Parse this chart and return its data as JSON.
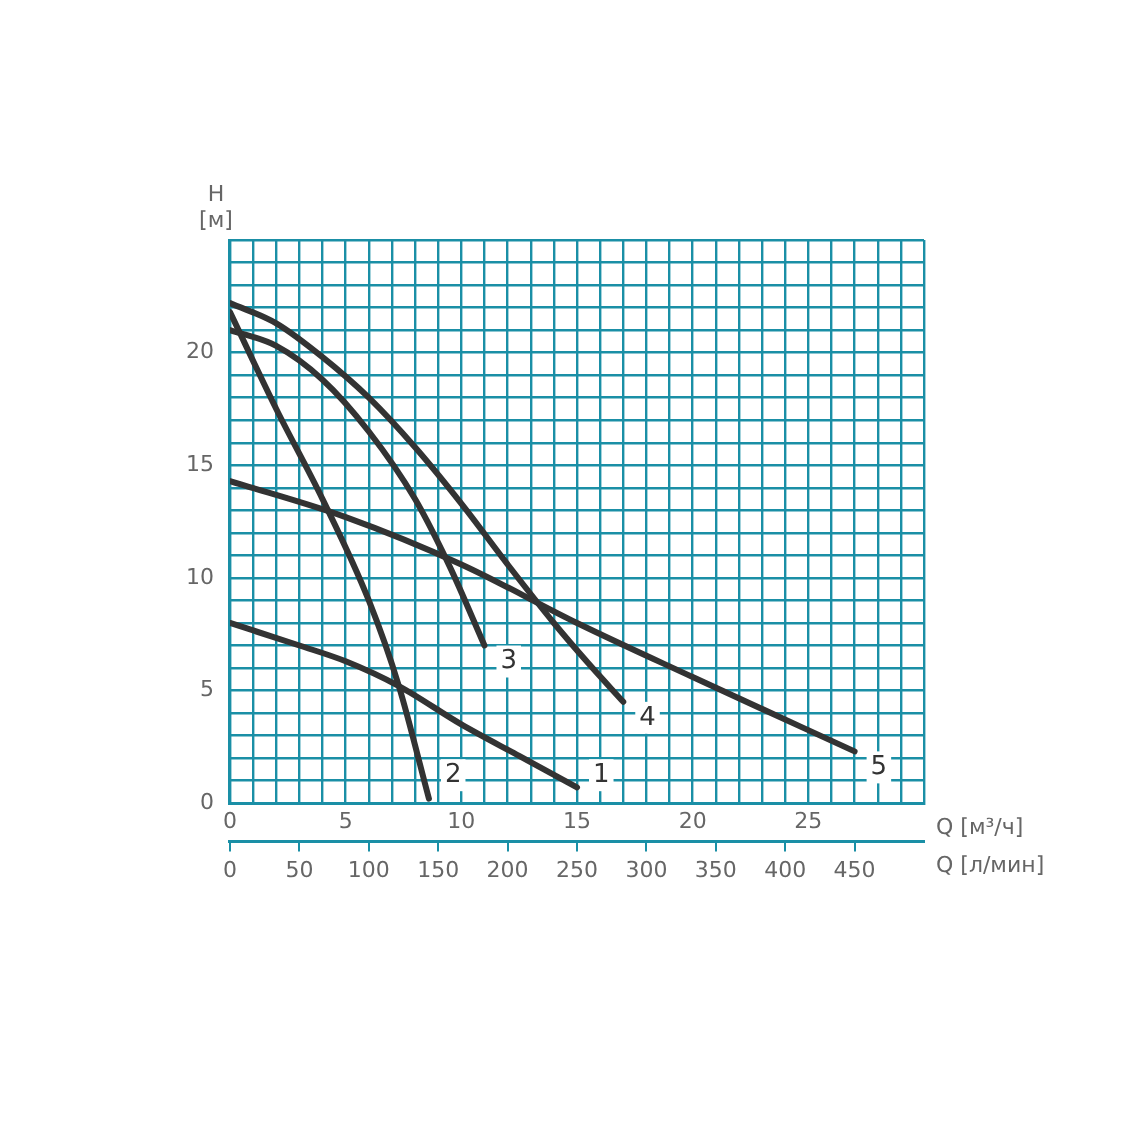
{
  "chart_data": {
    "type": "line",
    "xlabel": "Q [м³/ч]",
    "ylabel": "H [м]",
    "x2label": "Q [л/мин]",
    "xlim": [
      0,
      30
    ],
    "ylim": [
      0,
      25
    ],
    "x2lim": [
      0,
      500
    ],
    "xticks": [
      0,
      {
        "value": 1,
        "label": null
      },
      {
        "value": 2,
        "label": null
      },
      {
        "value": 3,
        "label": null
      },
      {
        "value": 4,
        "label": null
      },
      5,
      {
        "value": 6,
        "label": null
      },
      {
        "value": 7,
        "label": null
      },
      {
        "value": 8,
        "label": null
      },
      {
        "value": 9,
        "label": null
      },
      10,
      {
        "value": 11,
        "label": null
      },
      {
        "value": 12,
        "label": null
      },
      {
        "value": 13,
        "label": null
      },
      {
        "value": 14,
        "label": null
      },
      15,
      {
        "value": 16,
        "label": null
      },
      {
        "value": 17,
        "label": null
      },
      {
        "value": 18,
        "label": null
      },
      {
        "value": 19,
        "label": null
      },
      20,
      {
        "value": 21,
        "label": null
      },
      {
        "value": 22,
        "label": null
      },
      {
        "value": 23,
        "label": null
      },
      {
        "value": 24,
        "label": null
      },
      25,
      {
        "value": 26,
        "label": null
      },
      {
        "value": 27,
        "label": null
      },
      {
        "value": 28,
        "label": null
      },
      {
        "value": 29,
        "label": null
      },
      {
        "value": 30,
        "label": null
      }
    ],
    "yticks": [
      0,
      {
        "value": 1,
        "label": null
      },
      {
        "value": 2,
        "label": null
      },
      {
        "value": 3,
        "label": null
      },
      {
        "value": 4,
        "label": null
      },
      5,
      {
        "value": 6,
        "label": null
      },
      {
        "value": 7,
        "label": null
      },
      {
        "value": 8,
        "label": null
      },
      {
        "value": 9,
        "label": null
      },
      10,
      {
        "value": 11,
        "label": null
      },
      {
        "value": 12,
        "label": null
      },
      {
        "value": 13,
        "label": null
      },
      {
        "value": 14,
        "label": null
      },
      15,
      {
        "value": 16,
        "label": null
      },
      {
        "value": 17,
        "label": null
      },
      {
        "value": 18,
        "label": null
      },
      {
        "value": 19,
        "label": null
      },
      20,
      {
        "value": 21,
        "label": null
      },
      {
        "value": 22,
        "label": null
      },
      {
        "value": 23,
        "label": null
      },
      {
        "value": 24,
        "label": null
      },
      {
        "value": 25,
        "label": null
      }
    ],
    "x2ticks": [
      0,
      50,
      100,
      150,
      200,
      250,
      300,
      350,
      400,
      450
    ],
    "grid": true,
    "legend": false,
    "marker": "none",
    "line_style": "solid",
    "series": [
      {
        "name": "1",
        "color": "#333333",
        "x": [
          0,
          3,
          5,
          7.3,
          10,
          12.5,
          15
        ],
        "values": [
          8,
          7,
          6.3,
          5.2,
          3.5,
          2.1,
          0.7
        ]
      },
      {
        "name": "2",
        "color": "#333333",
        "x": [
          0,
          2,
          4,
          6,
          7.3,
          8.6
        ],
        "values": [
          21.8,
          17.5,
          13.5,
          9,
          5.2,
          0.2
        ]
      },
      {
        "name": "3",
        "color": "#333333",
        "x": [
          0,
          2,
          4,
          6,
          8,
          9.5,
          11
        ],
        "values": [
          21,
          20.3,
          18.8,
          16.5,
          13.5,
          10.5,
          7
        ]
      },
      {
        "name": "4",
        "color": "#333333",
        "x": [
          0,
          2,
          4,
          6,
          8,
          10,
          12,
          14,
          15.5,
          17
        ],
        "values": [
          22.2,
          21.3,
          19.8,
          18,
          15.8,
          13.3,
          10.6,
          8,
          6.2,
          4.5
        ]
      },
      {
        "name": "5",
        "color": "#333333",
        "x": [
          0,
          5,
          10,
          15,
          20,
          27
        ],
        "values": [
          14.3,
          12.7,
          10.6,
          8,
          5.6,
          2.3
        ]
      }
    ]
  }
}
